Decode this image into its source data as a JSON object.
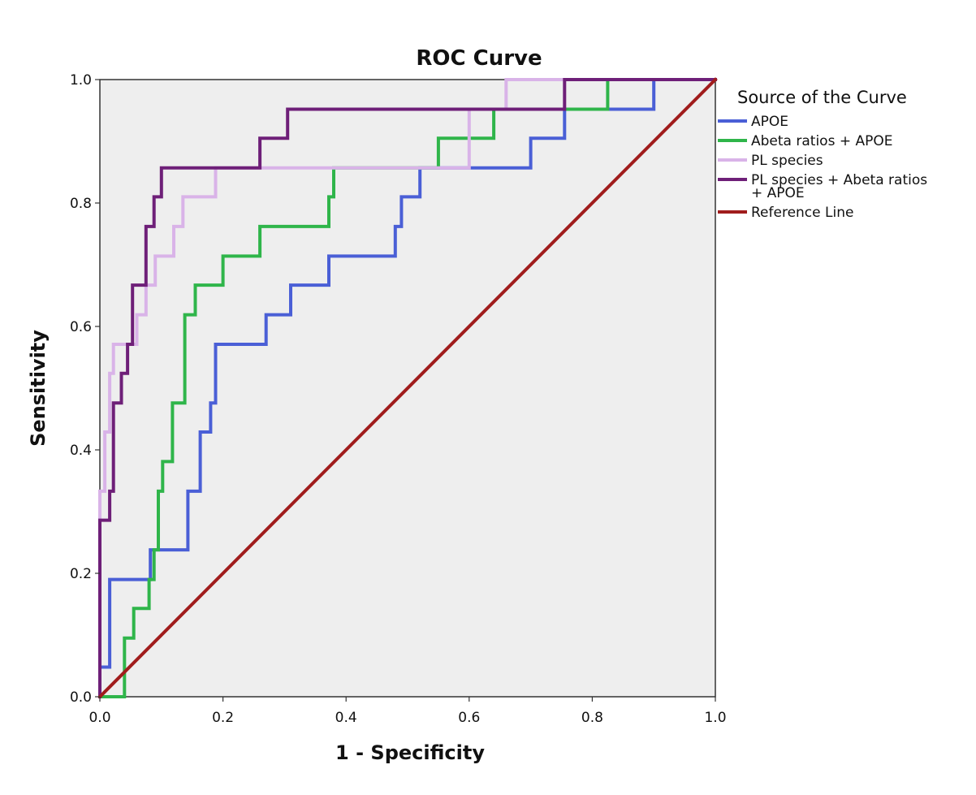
{
  "chart_data": {
    "type": "line",
    "title": "ROC Curve",
    "xlabel": "1 - Specificity",
    "ylabel": "Sensitivity",
    "xlim": [
      0.0,
      1.0
    ],
    "ylim": [
      0.0,
      1.0
    ],
    "x_ticks": [
      "0.0",
      "0.2",
      "0.4",
      "0.6",
      "0.8",
      "1.0"
    ],
    "y_ticks": [
      "0.0",
      "0.2",
      "0.4",
      "0.6",
      "0.8",
      "1.0"
    ],
    "legend_title": "Source of the Curve",
    "legend_position": "right",
    "plot_background": "#eeeeee",
    "series": [
      {
        "name": "APOE",
        "color": "#4a5fd6",
        "points": [
          [
            0,
            0
          ],
          [
            0,
            0.048
          ],
          [
            0.016,
            0.048
          ],
          [
            0.016,
            0.19
          ],
          [
            0.082,
            0.19
          ],
          [
            0.082,
            0.238
          ],
          [
            0.143,
            0.238
          ],
          [
            0.143,
            0.333
          ],
          [
            0.163,
            0.333
          ],
          [
            0.163,
            0.429
          ],
          [
            0.18,
            0.429
          ],
          [
            0.18,
            0.476
          ],
          [
            0.188,
            0.476
          ],
          [
            0.188,
            0.571
          ],
          [
            0.27,
            0.571
          ],
          [
            0.27,
            0.619
          ],
          [
            0.31,
            0.619
          ],
          [
            0.31,
            0.667
          ],
          [
            0.372,
            0.667
          ],
          [
            0.372,
            0.714
          ],
          [
            0.48,
            0.714
          ],
          [
            0.48,
            0.762
          ],
          [
            0.49,
            0.762
          ],
          [
            0.49,
            0.81
          ],
          [
            0.52,
            0.81
          ],
          [
            0.52,
            0.857
          ],
          [
            0.7,
            0.857
          ],
          [
            0.7,
            0.905
          ],
          [
            0.755,
            0.905
          ],
          [
            0.755,
            0.952
          ],
          [
            0.9,
            0.952
          ],
          [
            0.9,
            1.0
          ],
          [
            1.0,
            1.0
          ]
        ]
      },
      {
        "name": "Abeta ratios + APOE",
        "color": "#2fb54a",
        "points": [
          [
            0,
            0
          ],
          [
            0.04,
            0
          ],
          [
            0.04,
            0.095
          ],
          [
            0.055,
            0.095
          ],
          [
            0.055,
            0.143
          ],
          [
            0.08,
            0.143
          ],
          [
            0.08,
            0.19
          ],
          [
            0.088,
            0.19
          ],
          [
            0.088,
            0.238
          ],
          [
            0.095,
            0.238
          ],
          [
            0.095,
            0.333
          ],
          [
            0.102,
            0.333
          ],
          [
            0.102,
            0.381
          ],
          [
            0.118,
            0.381
          ],
          [
            0.118,
            0.476
          ],
          [
            0.138,
            0.476
          ],
          [
            0.138,
            0.619
          ],
          [
            0.155,
            0.619
          ],
          [
            0.155,
            0.667
          ],
          [
            0.2,
            0.667
          ],
          [
            0.2,
            0.714
          ],
          [
            0.26,
            0.714
          ],
          [
            0.26,
            0.762
          ],
          [
            0.372,
            0.762
          ],
          [
            0.372,
            0.81
          ],
          [
            0.38,
            0.81
          ],
          [
            0.38,
            0.857
          ],
          [
            0.55,
            0.857
          ],
          [
            0.55,
            0.905
          ],
          [
            0.64,
            0.905
          ],
          [
            0.64,
            0.952
          ],
          [
            0.825,
            0.952
          ],
          [
            0.825,
            1.0
          ],
          [
            1.0,
            1.0
          ]
        ]
      },
      {
        "name": "PL species",
        "color": "#d9b3e8",
        "points": [
          [
            0,
            0
          ],
          [
            0,
            0.333
          ],
          [
            0.008,
            0.333
          ],
          [
            0.008,
            0.429
          ],
          [
            0.016,
            0.429
          ],
          [
            0.016,
            0.524
          ],
          [
            0.022,
            0.524
          ],
          [
            0.022,
            0.571
          ],
          [
            0.06,
            0.571
          ],
          [
            0.06,
            0.619
          ],
          [
            0.075,
            0.619
          ],
          [
            0.075,
            0.667
          ],
          [
            0.09,
            0.667
          ],
          [
            0.09,
            0.714
          ],
          [
            0.12,
            0.714
          ],
          [
            0.12,
            0.762
          ],
          [
            0.135,
            0.762
          ],
          [
            0.135,
            0.81
          ],
          [
            0.188,
            0.81
          ],
          [
            0.188,
            0.857
          ],
          [
            0.6,
            0.857
          ],
          [
            0.6,
            0.952
          ],
          [
            0.66,
            0.952
          ],
          [
            0.66,
            1.0
          ],
          [
            1.0,
            1.0
          ]
        ]
      },
      {
        "name": "PL species + Abeta ratios + APOE",
        "color": "#6e1f78",
        "points": [
          [
            0,
            0
          ],
          [
            0,
            0.286
          ],
          [
            0.016,
            0.286
          ],
          [
            0.016,
            0.333
          ],
          [
            0.022,
            0.333
          ],
          [
            0.022,
            0.476
          ],
          [
            0.035,
            0.476
          ],
          [
            0.035,
            0.524
          ],
          [
            0.045,
            0.524
          ],
          [
            0.045,
            0.571
          ],
          [
            0.053,
            0.571
          ],
          [
            0.053,
            0.667
          ],
          [
            0.075,
            0.667
          ],
          [
            0.075,
            0.762
          ],
          [
            0.088,
            0.762
          ],
          [
            0.088,
            0.81
          ],
          [
            0.1,
            0.81
          ],
          [
            0.1,
            0.857
          ],
          [
            0.26,
            0.857
          ],
          [
            0.26,
            0.905
          ],
          [
            0.305,
            0.905
          ],
          [
            0.305,
            0.952
          ],
          [
            0.755,
            0.952
          ],
          [
            0.755,
            1.0
          ],
          [
            1.0,
            1.0
          ]
        ]
      },
      {
        "name": "Reference Line",
        "color": "#a01c1c",
        "points": [
          [
            0,
            0
          ],
          [
            1,
            1
          ]
        ]
      }
    ]
  }
}
